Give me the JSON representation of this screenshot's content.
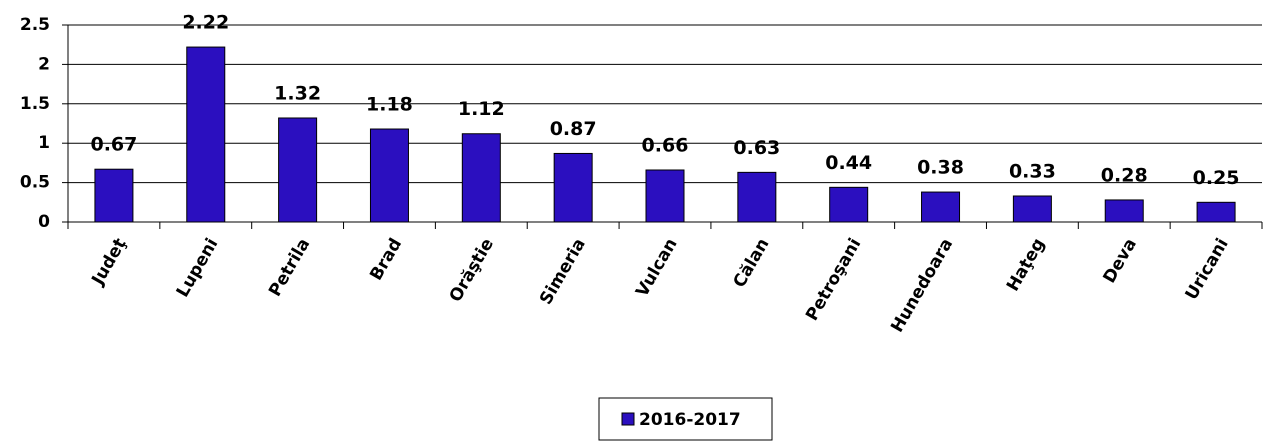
{
  "chart_data": {
    "type": "bar",
    "categories": [
      "Judeţ",
      "Lupeni",
      "Petrila",
      "Brad",
      "Orăştie",
      "Simeria",
      "Vulcan",
      "Călan",
      "Petroşani",
      "Hunedoara",
      "Haţeg",
      "Deva",
      "Uricani"
    ],
    "series": [
      {
        "name": "2016-2017",
        "color": "#2b0fbf",
        "values": [
          0.67,
          2.22,
          1.32,
          1.18,
          1.12,
          0.87,
          0.66,
          0.63,
          0.44,
          0.38,
          0.33,
          0.28,
          0.25
        ]
      }
    ],
    "ylim": [
      0,
      2.5
    ],
    "yticks": [
      0,
      0.5,
      1,
      1.5,
      2,
      2.5
    ],
    "grid": true,
    "legend": "bottom"
  }
}
